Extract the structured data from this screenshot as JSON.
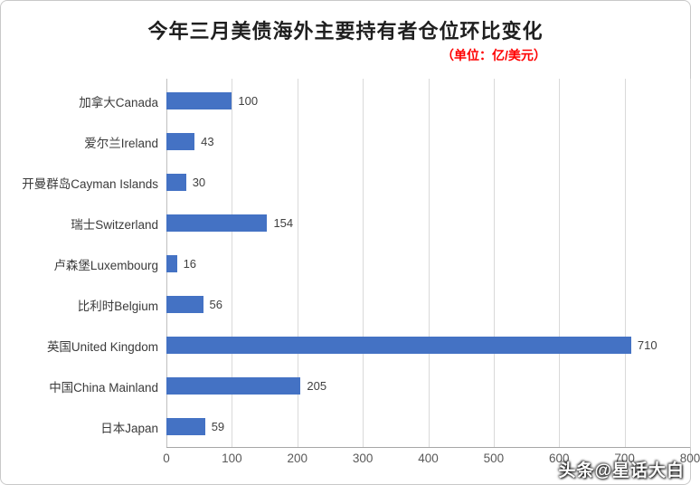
{
  "frame": {
    "background": "#ffffff",
    "border_color": "#c9c9c9"
  },
  "chart_data": {
    "type": "bar",
    "orientation": "horizontal",
    "title": "今年三月美债海外主要持有者仓位环比变化",
    "unit_label": "（单位：亿/美元）",
    "categories": [
      "加拿大Canada",
      "爱尔兰Ireland",
      "开曼群岛Cayman Islands",
      "瑞士Switzerland",
      "卢森堡Luxembourg",
      "比利时Belgium",
      "英国United Kingdom",
      "中国China Mainland",
      "日本Japan"
    ],
    "values": [
      100,
      43,
      30,
      154,
      16,
      56,
      710,
      205,
      59
    ],
    "x_ticks": [
      0,
      100,
      200,
      300,
      400,
      500,
      600,
      700,
      800
    ],
    "xlim": [
      0,
      800
    ],
    "bar_color": "#4472c4",
    "grid": true,
    "gridline_color": "#d9d9d9",
    "value_labels": true,
    "legend": "none"
  },
  "watermark": {
    "text": "头条@星话大白",
    "color": "#ffffff"
  }
}
